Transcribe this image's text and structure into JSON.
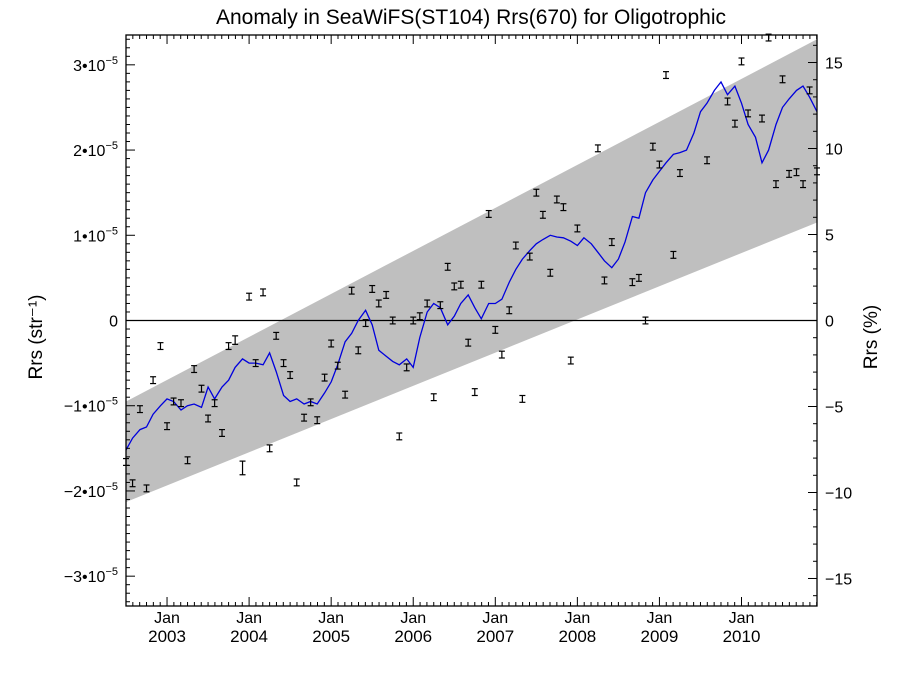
{
  "chart_data": {
    "type": "scatter",
    "title": "Anomaly in SeaWiFS(ST104) Rrs(670) for Oligotrophic",
    "ylabel_left": "Rrs (str⁻¹)",
    "ylabel_right": "Rrs (%)",
    "xlim": [
      2002.5,
      2010.92
    ],
    "ylim": [
      -3.35e-05,
      3.35e-05
    ],
    "ylim_right": [
      -16.6,
      16.6
    ],
    "left_ticks": [
      {
        "value": -3e-05,
        "mant": "−3•10",
        "exp": "−5"
      },
      {
        "value": -2e-05,
        "mant": "−2•10",
        "exp": "−5"
      },
      {
        "value": -1e-05,
        "mant": "−1•10",
        "exp": "−5"
      },
      {
        "value": 0,
        "mant": "0",
        "exp": ""
      },
      {
        "value": 1e-05,
        "mant": "1•10",
        "exp": "−5"
      },
      {
        "value": 2e-05,
        "mant": "2•10",
        "exp": "−5"
      },
      {
        "value": 3e-05,
        "mant": "3•10",
        "exp": "−5"
      }
    ],
    "right_ticks": [
      {
        "value": -15,
        "label": "−15"
      },
      {
        "value": -10,
        "label": "−10"
      },
      {
        "value": -5,
        "label": "−5"
      },
      {
        "value": 0,
        "label": "0"
      },
      {
        "value": 5,
        "label": "5"
      },
      {
        "value": 10,
        "label": "10"
      },
      {
        "value": 15,
        "label": "15"
      }
    ],
    "year_ticks": [
      {
        "x": 2003,
        "month": "Jan",
        "year": "2003"
      },
      {
        "x": 2004,
        "month": "Jan",
        "year": "2004"
      },
      {
        "x": 2005,
        "month": "Jan",
        "year": "2005"
      },
      {
        "x": 2006,
        "month": "Jan",
        "year": "2006"
      },
      {
        "x": 2007,
        "month": "Jan",
        "year": "2007"
      },
      {
        "x": 2008,
        "month": "Jan",
        "year": "2008"
      },
      {
        "x": 2009,
        "month": "Jan",
        "year": "2009"
      },
      {
        "x": 2010,
        "month": "Jan",
        "year": "2010"
      }
    ],
    "zero_line": 0,
    "band": {
      "x": [
        2002.5,
        2010.92
      ],
      "upper": [
        -9.5e-06,
        3.3e-05
      ],
      "lower": [
        -2.13e-05,
        1.15e-05
      ],
      "color": "#bfbfbf"
    },
    "smooth_line": {
      "color": "#0000dd",
      "x": [
        2002.5,
        2002.58,
        2002.67,
        2002.75,
        2002.83,
        2002.92,
        2003.0,
        2003.08,
        2003.17,
        2003.25,
        2003.33,
        2003.42,
        2003.5,
        2003.58,
        2003.67,
        2003.75,
        2003.83,
        2003.92,
        2004.0,
        2004.08,
        2004.17,
        2004.25,
        2004.33,
        2004.42,
        2004.5,
        2004.58,
        2004.67,
        2004.75,
        2004.83,
        2004.92,
        2005.0,
        2005.08,
        2005.17,
        2005.25,
        2005.33,
        2005.42,
        2005.5,
        2005.58,
        2005.67,
        2005.75,
        2005.83,
        2005.92,
        2006.0,
        2006.08,
        2006.17,
        2006.25,
        2006.33,
        2006.42,
        2006.5,
        2006.58,
        2006.67,
        2006.75,
        2006.83,
        2006.92,
        2007.0,
        2007.08,
        2007.17,
        2007.25,
        2007.33,
        2007.42,
        2007.5,
        2007.58,
        2007.67,
        2007.75,
        2007.83,
        2007.92,
        2008.0,
        2008.08,
        2008.17,
        2008.25,
        2008.33,
        2008.42,
        2008.5,
        2008.58,
        2008.67,
        2008.75,
        2008.83,
        2008.92,
        2009.0,
        2009.08,
        2009.17,
        2009.25,
        2009.33,
        2009.42,
        2009.5,
        2009.58,
        2009.67,
        2009.75,
        2009.83,
        2009.92,
        2010.0,
        2010.08,
        2010.17,
        2010.25,
        2010.33,
        2010.42,
        2010.5,
        2010.58,
        2010.67,
        2010.75,
        2010.83,
        2010.92
      ],
      "y": [
        -1.52e-05,
        -1.38e-05,
        -1.28e-05,
        -1.25e-05,
        -1.1e-05,
        -1e-05,
        -9.2e-06,
        -9.5e-06,
        -1.05e-05,
        -1e-05,
        -9.8e-06,
        -1.02e-05,
        -7.8e-06,
        -9.2e-06,
        -7.8e-06,
        -7e-06,
        -5.5e-06,
        -4.5e-06,
        -5e-06,
        -5e-06,
        -5.2e-06,
        -3.8e-06,
        -6e-06,
        -8.8e-06,
        -9.5e-06,
        -9.2e-06,
        -9.8e-06,
        -9.5e-06,
        -9.8e-06,
        -8.5e-06,
        -7.2e-06,
        -5.2e-06,
        -2.5e-06,
        -1.5e-06,
        0.0,
        1.2e-06,
        -5e-07,
        -3.5e-06,
        -4.2e-06,
        -4.8e-06,
        -5.2e-06,
        -4.5e-06,
        -5.5e-06,
        -2e-06,
        1e-06,
        2e-06,
        1.5e-06,
        -5e-07,
        5e-07,
        2e-06,
        3e-06,
        1.5e-06,
        2e-07,
        2e-06,
        2e-06,
        2.5e-06,
        4.5e-06,
        6e-06,
        7.2e-06,
        8.2e-06,
        9e-06,
        9.5e-06,
        1e-05,
        9.8e-06,
        9.7e-06,
        9.3e-06,
        8.8e-06,
        9.7e-06,
        9e-06,
        8e-06,
        7e-06,
        6.2e-06,
        7.2e-06,
        9.2e-06,
        1.22e-05,
        1.2e-05,
        1.5e-05,
        1.65e-05,
        1.75e-05,
        1.85e-05,
        1.95e-05,
        1.97e-05,
        2e-05,
        2.2e-05,
        2.45e-05,
        2.55e-05,
        2.7e-05,
        2.8e-05,
        2.65e-05,
        2.75e-05,
        2.55e-05,
        2.3e-05,
        2.15e-05,
        1.85e-05,
        2e-05,
        2.3e-05,
        2.5e-05,
        2.6e-05,
        2.7e-05,
        2.75e-05,
        2.62e-05,
        2.45e-05
      ]
    },
    "points": {
      "x": [
        2002.5,
        2002.58,
        2002.67,
        2002.75,
        2002.83,
        2002.92,
        2003.0,
        2003.08,
        2003.17,
        2003.25,
        2003.33,
        2003.42,
        2003.5,
        2003.58,
        2003.67,
        2003.75,
        2003.83,
        2003.92,
        2004.0,
        2004.08,
        2004.17,
        2004.25,
        2004.33,
        2004.42,
        2004.5,
        2004.58,
        2004.67,
        2004.75,
        2004.83,
        2004.92,
        2005.0,
        2005.08,
        2005.17,
        2005.25,
        2005.33,
        2005.42,
        2005.5,
        2005.58,
        2005.67,
        2005.75,
        2005.83,
        2005.92,
        2006.0,
        2006.08,
        2006.17,
        2006.25,
        2006.33,
        2006.42,
        2006.5,
        2006.58,
        2006.67,
        2006.75,
        2006.83,
        2006.92,
        2007.0,
        2007.08,
        2007.17,
        2007.25,
        2007.33,
        2007.42,
        2007.5,
        2007.58,
        2007.67,
        2007.75,
        2007.83,
        2007.92,
        2008.0,
        2008.25,
        2008.33,
        2008.42,
        2008.67,
        2008.75,
        2008.83,
        2008.92,
        2009.0,
        2009.08,
        2009.17,
        2009.25,
        2009.58,
        2009.83,
        2009.92,
        2010.0,
        2010.08,
        2010.25,
        2010.33,
        2010.42,
        2010.5,
        2010.58,
        2010.67,
        2010.75,
        2010.83,
        2010.92
      ],
      "y": [
        -1.66e-05,
        -1.91e-05,
        -1.04e-05,
        -1.97e-05,
        -7e-06,
        -3e-06,
        -1.24e-05,
        -9.5e-06,
        -9.7e-06,
        -1.64e-05,
        -5.7e-06,
        -8e-06,
        -1.15e-05,
        -9.7e-06,
        -1.32e-05,
        -3e-06,
        -2.3e-06,
        -1.73e-05,
        2.8e-06,
        -5e-06,
        3.3e-06,
        -1.5e-05,
        -1.8e-06,
        -5e-06,
        -6.4e-06,
        -1.9e-05,
        -1.14e-05,
        -9.6e-06,
        -1.17e-05,
        -6.7e-06,
        -2.7e-06,
        -5.3e-06,
        -8.7e-06,
        3.5e-06,
        -3.5e-06,
        -3e-07,
        3.7e-06,
        2e-06,
        3e-06,
        0.0,
        -1.36e-05,
        -5.5e-06,
        0.0,
        5e-07,
        2e-06,
        -9e-06,
        1.8e-06,
        6.3e-06,
        4e-06,
        4.2e-06,
        -2.6e-06,
        -8.4e-06,
        4.2e-06,
        1.25e-05,
        -1.1e-06,
        -4e-06,
        1.2e-06,
        8.8e-06,
        -9.2e-06,
        7.5e-06,
        1.5e-05,
        1.24e-05,
        5.6e-06,
        1.42e-05,
        1.33e-05,
        -4.7e-06,
        1.08e-05,
        2.02e-05,
        4.7e-06,
        9.2e-06,
        4.5e-06,
        5e-06,
        0.0,
        2.04e-05,
        1.83e-05,
        2.88e-05,
        7.7e-06,
        1.73e-05,
        1.88e-05,
        2.57e-05,
        2.31e-05,
        3.04e-05,
        2.43e-05,
        2.37e-05,
        3.32e-05,
        1.6e-05,
        2.83e-05,
        1.72e-05,
        1.74e-05,
        1.6e-05,
        2.7e-05,
        1.75e-05
      ],
      "err": [
        4e-07,
        4e-07,
        4e-07,
        4e-07,
        4e-07,
        4e-07,
        4e-07,
        4e-07,
        4e-07,
        4e-07,
        4e-07,
        4e-07,
        4e-07,
        4e-07,
        4e-07,
        4e-07,
        5e-07,
        8e-07,
        4e-07,
        4e-07,
        4e-07,
        4e-07,
        4e-07,
        4e-07,
        4e-07,
        4e-07,
        4e-07,
        4e-07,
        4e-07,
        4e-07,
        4e-07,
        4e-07,
        4e-07,
        4e-07,
        4e-07,
        4e-07,
        4e-07,
        4e-07,
        4e-07,
        4e-07,
        4e-07,
        4e-07,
        4e-07,
        4e-07,
        4e-07,
        4e-07,
        4e-07,
        4e-07,
        4e-07,
        4e-07,
        4e-07,
        4e-07,
        4e-07,
        4e-07,
        4e-07,
        4e-07,
        4e-07,
        4e-07,
        4e-07,
        4e-07,
        4e-07,
        4e-07,
        4e-07,
        4e-07,
        4e-07,
        4e-07,
        4e-07,
        4e-07,
        4e-07,
        4e-07,
        4e-07,
        4e-07,
        4e-07,
        4e-07,
        4e-07,
        4e-07,
        4e-07,
        4e-07,
        4e-07,
        4e-07,
        4e-07,
        4e-07,
        4e-07,
        4e-07,
        4e-07,
        4e-07,
        4e-07,
        4e-07,
        4e-07,
        4e-07,
        4e-07,
        4e-07
      ]
    }
  }
}
